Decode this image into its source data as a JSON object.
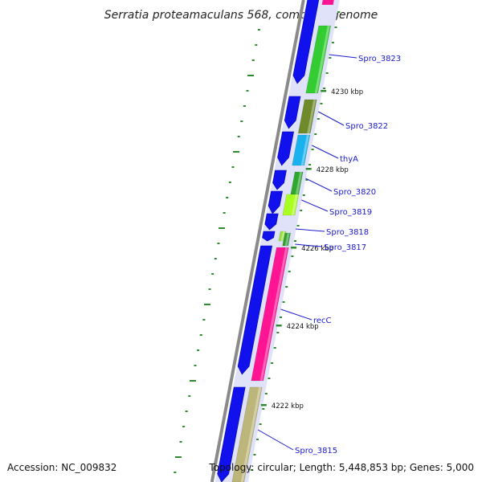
{
  "title": "Serratia proteamaculans 568, complete genome",
  "footer": {
    "accession": "Accession: NC_009832",
    "stats": "Topology: circular; Length: 5,448,853 bp; Genes: 5,000"
  },
  "colors": {
    "backbone": "#8a8a8a",
    "forward_strand": "#1111ee",
    "label_line": "#1a1acc",
    "label_text": "#1a1acc",
    "tick": "#2e8b2e",
    "gc_skew": "#2e8b2e",
    "pale_band": "#dfe2f8",
    "Spro_3823": "#33cc33",
    "Spro_3822": "#6e8a2a",
    "thyA": "#1ab2ee",
    "Spro_3820": "#2ea82e",
    "Spro_3819": "#aaff22",
    "Spro_3818": "#9be040",
    "Spro_3817": "#2f9f2f",
    "recC": "#ff1493",
    "Spro_3815": "#bdb67a",
    "top_partial": "#ff1493"
  },
  "kbp_labels": [
    "4230 kbp",
    "4228 kbp",
    "4226 kbp",
    "4224 kbp",
    "4222 kbp"
  ],
  "genes": [
    {
      "name": "Spro_3823"
    },
    {
      "name": "Spro_3822"
    },
    {
      "name": "thyA"
    },
    {
      "name": "Spro_3820"
    },
    {
      "name": "Spro_3819"
    },
    {
      "name": "Spro_3818"
    },
    {
      "name": "Spro_3817"
    },
    {
      "name": "recC"
    },
    {
      "name": "Spro_3815"
    }
  ]
}
